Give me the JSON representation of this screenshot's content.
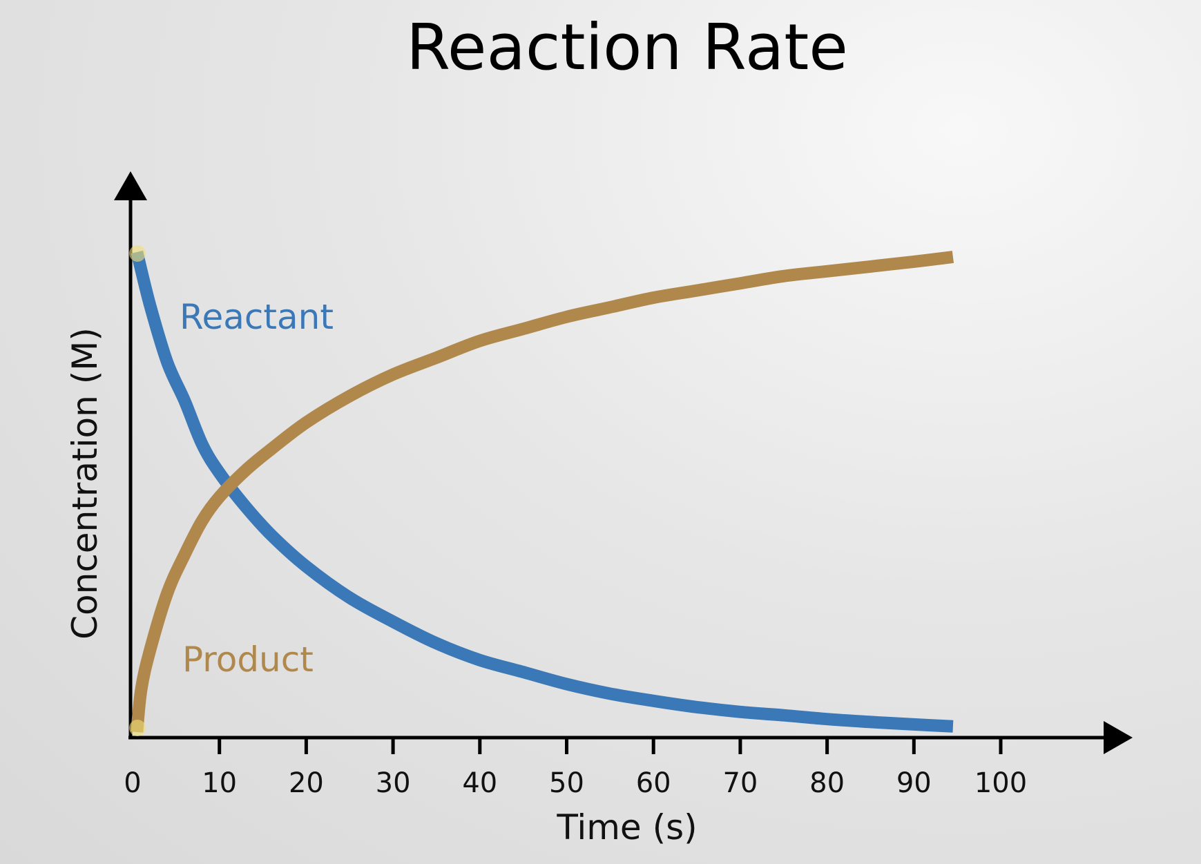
{
  "chart_data": {
    "type": "line",
    "title": "Reaction Rate",
    "xlabel": "Time (s)",
    "ylabel": "Concentration (M)",
    "xlim": [
      0,
      100
    ],
    "xticks": [
      0,
      10,
      20,
      30,
      40,
      50,
      60,
      70,
      80,
      90,
      100
    ],
    "grid": false,
    "legend": "inline labels",
    "series": [
      {
        "name": "Reactant",
        "color": "#3a78b8",
        "x": [
          0.5,
          2,
          4,
          6,
          8,
          10,
          13,
          16,
          20,
          25,
          30,
          35,
          40,
          45,
          50,
          55,
          60,
          65,
          70,
          75,
          80,
          85,
          90,
          94.5
        ],
        "y": [
          1.0,
          0.89,
          0.77,
          0.69,
          0.6,
          0.54,
          0.47,
          0.41,
          0.345,
          0.28,
          0.23,
          0.185,
          0.15,
          0.125,
          0.1,
          0.08,
          0.065,
          0.052,
          0.042,
          0.035,
          0.027,
          0.021,
          0.016,
          0.012
        ]
      },
      {
        "name": "Product",
        "color": "#b0884c",
        "x": [
          0.5,
          1,
          2,
          4,
          6,
          8,
          10,
          13,
          16,
          20,
          25,
          30,
          35,
          40,
          45,
          50,
          55,
          60,
          65,
          70,
          75,
          80,
          85,
          90,
          94.5
        ],
        "y": [
          0.0,
          0.09,
          0.17,
          0.29,
          0.37,
          0.44,
          0.49,
          0.545,
          0.59,
          0.645,
          0.7,
          0.745,
          0.78,
          0.815,
          0.84,
          0.865,
          0.885,
          0.905,
          0.92,
          0.935,
          0.95,
          0.96,
          0.97,
          0.98,
          0.99
        ]
      }
    ]
  },
  "colors": {
    "axis": "#000000",
    "reactant": "#3a78b8",
    "product": "#b0884c"
  }
}
